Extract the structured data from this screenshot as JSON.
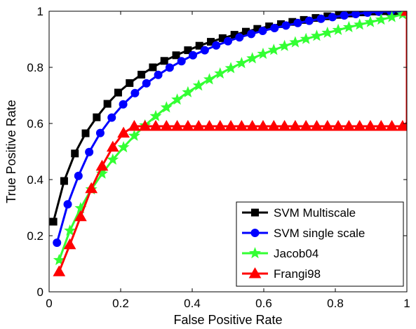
{
  "chart_data": {
    "type": "line",
    "title": "",
    "xlabel": "False Positive Rate",
    "ylabel": "True Positive Rate",
    "xlim": [
      0,
      1
    ],
    "ylim": [
      0,
      1
    ],
    "xticks": [
      0,
      0.2,
      0.4,
      0.6,
      0.8,
      1
    ],
    "yticks": [
      0,
      0.2,
      0.4,
      0.6,
      0.8,
      1
    ],
    "xtick_labels": [
      "0",
      "0.2",
      "0.4",
      "0.6",
      "0.8",
      "1"
    ],
    "ytick_labels": [
      "0",
      "0.2",
      "0.4",
      "0.6",
      "0.8",
      "1"
    ],
    "grid": false,
    "legend_position": "bottom-right",
    "series": [
      {
        "name": "SVM Multiscale",
        "color": "#000000",
        "marker": "square",
        "x": [
          0.012,
          0.042,
          0.072,
          0.102,
          0.133,
          0.163,
          0.193,
          0.225,
          0.258,
          0.29,
          0.322,
          0.355,
          0.388,
          0.42,
          0.452,
          0.485,
          0.518,
          0.55,
          0.582,
          0.615,
          0.648,
          0.68,
          0.712,
          0.745,
          0.778,
          0.81,
          0.842,
          0.875,
          0.908,
          0.94,
          0.972,
          1.0
        ],
        "y": [
          0.25,
          0.395,
          0.493,
          0.565,
          0.622,
          0.67,
          0.71,
          0.744,
          0.774,
          0.8,
          0.823,
          0.843,
          0.861,
          0.877,
          0.891,
          0.904,
          0.916,
          0.927,
          0.937,
          0.946,
          0.954,
          0.962,
          0.969,
          0.976,
          0.982,
          0.987,
          0.992,
          0.996,
          0.999,
          1.0,
          1.0,
          1.0
        ]
      },
      {
        "name": "SVM single scale",
        "color": "#0000ff",
        "marker": "circle",
        "x": [
          0.022,
          0.052,
          0.082,
          0.112,
          0.143,
          0.175,
          0.207,
          0.24,
          0.272,
          0.305,
          0.337,
          0.37,
          0.402,
          0.435,
          0.467,
          0.5,
          0.532,
          0.565,
          0.597,
          0.63,
          0.662,
          0.695,
          0.727,
          0.76,
          0.792,
          0.825,
          0.857,
          0.89,
          0.922,
          0.955,
          0.985,
          1.0
        ],
        "y": [
          0.175,
          0.312,
          0.413,
          0.498,
          0.566,
          0.621,
          0.668,
          0.708,
          0.743,
          0.773,
          0.799,
          0.822,
          0.843,
          0.861,
          0.878,
          0.893,
          0.907,
          0.919,
          0.93,
          0.94,
          0.949,
          0.958,
          0.966,
          0.973,
          0.979,
          0.985,
          0.99,
          0.995,
          0.998,
          1.0,
          1.0,
          1.0
        ]
      },
      {
        "name": "Jacob04",
        "color": "#33ff33",
        "marker": "star",
        "x": [
          0.028,
          0.058,
          0.088,
          0.118,
          0.148,
          0.178,
          0.208,
          0.238,
          0.268,
          0.298,
          0.328,
          0.358,
          0.388,
          0.418,
          0.448,
          0.478,
          0.508,
          0.538,
          0.568,
          0.598,
          0.628,
          0.658,
          0.688,
          0.718,
          0.748,
          0.778,
          0.808,
          0.838,
          0.868,
          0.898,
          0.928,
          0.958,
          0.988,
          1.0
        ],
        "y": [
          0.113,
          0.218,
          0.298,
          0.365,
          0.421,
          0.471,
          0.515,
          0.556,
          0.593,
          0.626,
          0.657,
          0.685,
          0.711,
          0.735,
          0.757,
          0.778,
          0.797,
          0.815,
          0.832,
          0.848,
          0.862,
          0.876,
          0.889,
          0.901,
          0.912,
          0.923,
          0.933,
          0.943,
          0.952,
          0.961,
          0.97,
          0.979,
          0.989,
          1.0
        ]
      },
      {
        "name": "Frangi98",
        "color": "#ff0000",
        "marker": "triangle",
        "x": [
          0.028,
          0.058,
          0.088,
          0.118,
          0.148,
          0.178,
          0.208,
          0.238,
          0.268,
          0.298,
          0.328,
          0.358,
          0.388,
          0.418,
          0.448,
          0.478,
          0.508,
          0.538,
          0.568,
          0.598,
          0.628,
          0.658,
          0.688,
          0.718,
          0.748,
          0.778,
          0.808,
          0.838,
          0.868,
          0.898,
          0.928,
          0.958,
          0.988,
          1.0,
          1.0
        ],
        "y": [
          0.072,
          0.168,
          0.268,
          0.368,
          0.448,
          0.516,
          0.566,
          0.59,
          0.59,
          0.59,
          0.59,
          0.59,
          0.59,
          0.59,
          0.59,
          0.59,
          0.59,
          0.59,
          0.59,
          0.59,
          0.59,
          0.59,
          0.59,
          0.59,
          0.59,
          0.59,
          0.59,
          0.59,
          0.59,
          0.59,
          0.59,
          0.59,
          0.59,
          0.59,
          1.0
        ]
      }
    ]
  }
}
